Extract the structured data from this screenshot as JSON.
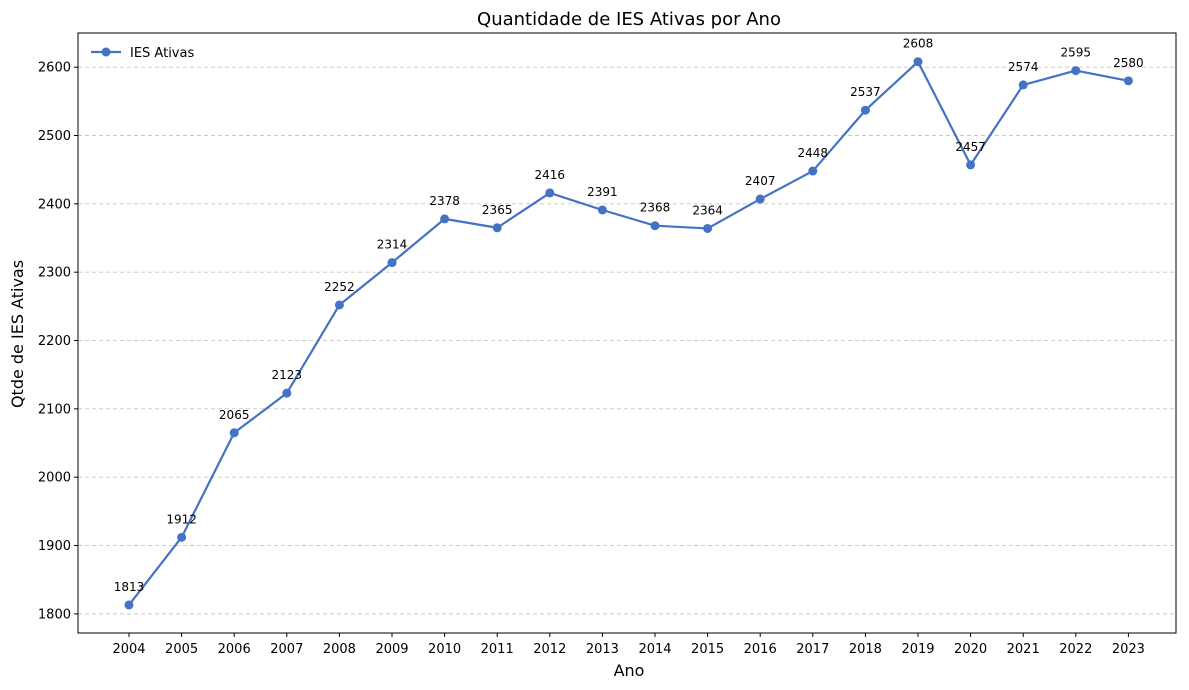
{
  "chart_data": {
    "type": "line",
    "title": "Quantidade de IES Ativas por Ano",
    "xlabel": "Ano",
    "ylabel": "Qtde de IES Ativas",
    "categories": [
      "2004",
      "2005",
      "2006",
      "2007",
      "2008",
      "2009",
      "2010",
      "2011",
      "2012",
      "2013",
      "2014",
      "2015",
      "2016",
      "2017",
      "2018",
      "2019",
      "2020",
      "2021",
      "2022",
      "2023"
    ],
    "series": [
      {
        "name": "IES Ativas",
        "values": [
          1813,
          1912,
          2065,
          2123,
          2252,
          2314,
          2378,
          2365,
          2416,
          2391,
          2368,
          2364,
          2407,
          2448,
          2537,
          2608,
          2457,
          2574,
          2595,
          2580
        ],
        "color": "#4472c4"
      }
    ],
    "ylim": [
      1772,
      2650
    ],
    "yticks": [
      1800,
      1900,
      2000,
      2100,
      2200,
      2300,
      2400,
      2500,
      2600
    ],
    "grid": "y-dashed",
    "legend_position": "top-left",
    "data_labels": true
  }
}
